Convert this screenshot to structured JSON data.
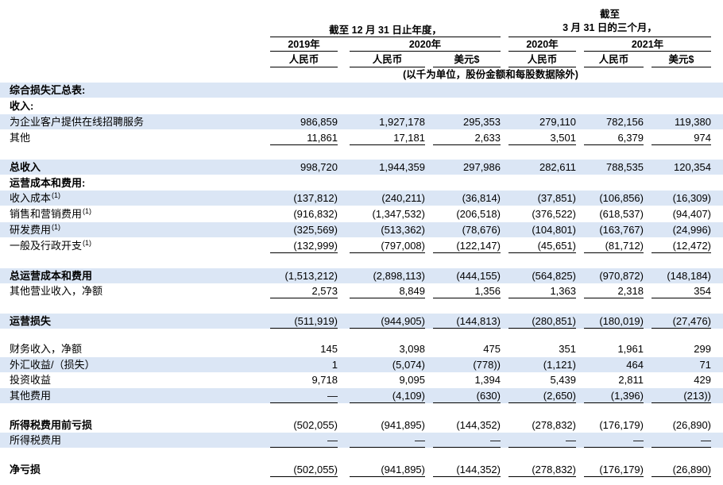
{
  "header": {
    "period_annual": "截至 12 月 31 日止年度，",
    "period_quarter_line1": "截至",
    "period_quarter_line2": "3 月 31 日的三个月，",
    "years": [
      "2019年",
      "2020年",
      "2020年",
      "2021年"
    ],
    "currencies": [
      "人民币",
      "人民币",
      "美元$",
      "人民币",
      "人民币",
      "美元$"
    ],
    "note": "(以千为单位，股份金额和每股数据除外)"
  },
  "rows": [
    {
      "label": "综合损失汇总表:",
      "bold": true,
      "shade": true,
      "values": [
        "",
        "",
        "",
        "",
        "",
        ""
      ]
    },
    {
      "label": "收入:",
      "bold": true,
      "shade": false,
      "values": [
        "",
        "",
        "",
        "",
        "",
        ""
      ]
    },
    {
      "label": "为企业客户提供在线招聘服务",
      "bold": false,
      "shade": true,
      "values": [
        "986,859",
        "1,927,178",
        "295,353",
        "279,110",
        "782,156",
        "119,380"
      ]
    },
    {
      "label": "其他",
      "bold": false,
      "shade": false,
      "underline": true,
      "values": [
        "11,861",
        "17,181",
        "2,633",
        "3,501",
        "6,379",
        "974"
      ]
    },
    {
      "label": "总收入",
      "bold": true,
      "shade": true,
      "values": [
        "998,720",
        "1,944,359",
        "297,986",
        "282,611",
        "788,535",
        "120,354"
      ]
    },
    {
      "label": "运营成本和费用:",
      "bold": true,
      "shade": false,
      "values": [
        "",
        "",
        "",
        "",
        "",
        ""
      ]
    },
    {
      "label": "收入成本",
      "footnote": "(1)",
      "bold": false,
      "shade": true,
      "values": [
        "(137,812)",
        "(240,211)",
        "(36,814)",
        "(37,851)",
        "(106,856)",
        "(16,309)"
      ]
    },
    {
      "label": "销售和营销费用",
      "footnote": "(1)",
      "bold": false,
      "shade": false,
      "values": [
        "(916,832)",
        "(1,347,532)",
        "(206,518)",
        "(376,522)",
        "(618,537)",
        "(94,407)"
      ]
    },
    {
      "label": "研发费用",
      "footnote": "(1)",
      "bold": false,
      "shade": true,
      "values": [
        "(325,569)",
        "(513,362)",
        "(78,676)",
        "(104,801)",
        "(163,767)",
        "(24,996)"
      ]
    },
    {
      "label": "一般及行政开支",
      "footnote": "(1)",
      "bold": false,
      "shade": false,
      "underline": true,
      "values": [
        "(132,999)",
        "(797,008)",
        "(122,147)",
        "(45,651)",
        "(81,712)",
        "(12,472)"
      ]
    },
    {
      "label": "总运营成本和费用",
      "bold": true,
      "shade": true,
      "values": [
        "(1,513,212)",
        "(2,898,113)",
        "(444,155)",
        "(564,825)",
        "(970,872)",
        "(148,184)"
      ]
    },
    {
      "label": "其他营业收入，净额",
      "bold": false,
      "shade": false,
      "underline": true,
      "values": [
        "2,573",
        "8,849",
        "1,356",
        "1,363",
        "2,318",
        "354"
      ]
    },
    {
      "label": "运营损失",
      "bold": true,
      "shade": true,
      "underline": true,
      "values": [
        "(511,919)",
        "(944,905)",
        "(144,813)",
        "(280,851)",
        "(180,019)",
        "(27,476)"
      ]
    },
    {
      "label": "财务收入，净额",
      "bold": false,
      "shade": false,
      "values": [
        "145",
        "3,098",
        "475",
        "351",
        "1,961",
        "299"
      ]
    },
    {
      "label": "外汇收益/（损失）",
      "bold": false,
      "shade": true,
      "values": [
        "1",
        "(5,074)",
        "(778))",
        "(1,121)",
        "464",
        "71"
      ]
    },
    {
      "label": "投资收益",
      "bold": false,
      "shade": false,
      "values": [
        "9,718",
        "9,095",
        "1,394",
        "5,439",
        "2,811",
        "429"
      ]
    },
    {
      "label": "其他费用",
      "bold": false,
      "shade": true,
      "underline": true,
      "values": [
        "—",
        "(4,109)",
        "(630)",
        "(2,650)",
        "(1,396)",
        "(213))"
      ]
    },
    {
      "label": "所得税费用前亏损",
      "bold": true,
      "shade": false,
      "values": [
        "(502,055)",
        "(941,895)",
        "(144,352)",
        "(278,832)",
        "(176,179)",
        "(26,890)"
      ]
    },
    {
      "label": "所得税费用",
      "bold": false,
      "shade": true,
      "underline": true,
      "values": [
        "—",
        "—",
        "—",
        "—",
        "—",
        "—"
      ]
    },
    {
      "label": "净亏损",
      "bold": true,
      "shade": false,
      "underline": true,
      "values": [
        "(502,055)",
        "(941,895)",
        "(144,352)",
        "(278,832)",
        "(176,179)",
        "(26,890)"
      ]
    }
  ]
}
